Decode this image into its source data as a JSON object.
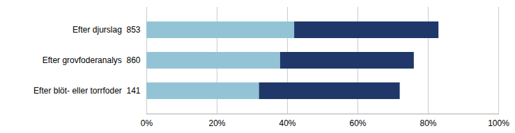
{
  "chart_data": {
    "type": "bar",
    "orientation": "horizontal",
    "stacked": true,
    "categories": [
      "Efter blöt- eller torrfoder  141",
      "Efter grovfoderanalys  860",
      "Efter djurslag  853"
    ],
    "series": [
      {
        "color": "#92C4D5",
        "values": [
          32,
          38,
          42
        ]
      },
      {
        "color": "#1F3869",
        "values": [
          40,
          38,
          41
        ]
      }
    ],
    "xlim": [
      0,
      100
    ],
    "xticks": [
      {
        "value": 0,
        "label": "0%"
      },
      {
        "value": 20,
        "label": "20%"
      },
      {
        "value": 40,
        "label": "40%"
      },
      {
        "value": 60,
        "label": "60%"
      },
      {
        "value": 80,
        "label": "80%"
      },
      {
        "value": 100,
        "label": "100%"
      }
    ],
    "grid": true
  }
}
